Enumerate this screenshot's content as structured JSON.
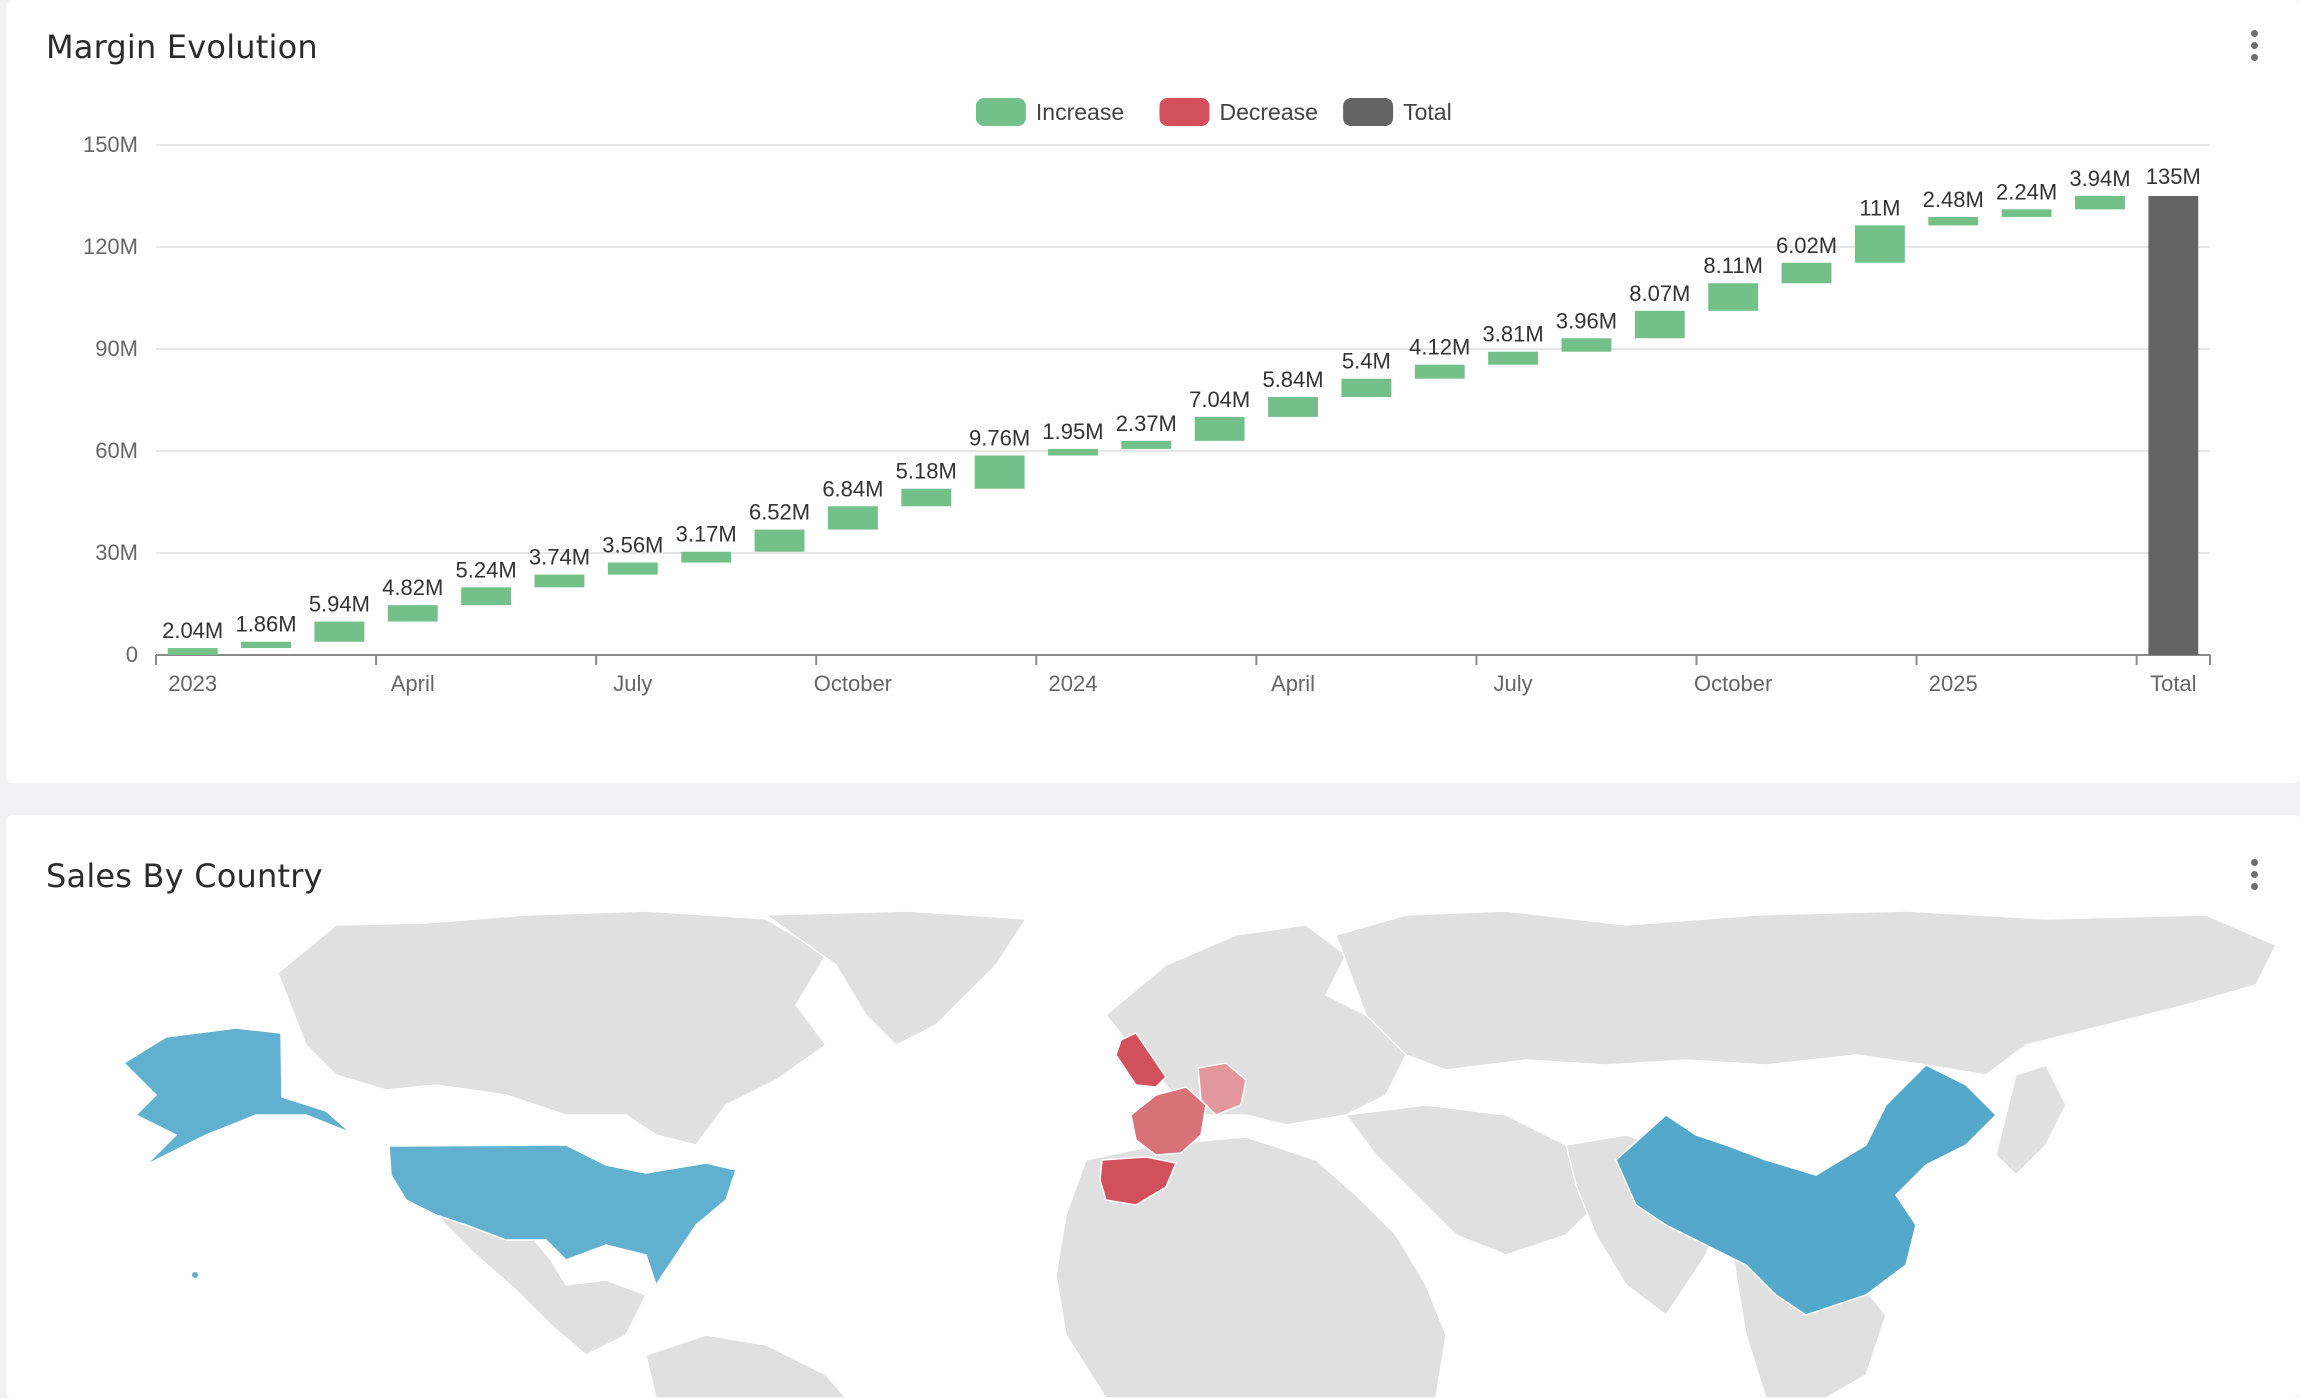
{
  "margin_card": {
    "title": "Margin Evolution",
    "menu_icon": "kebab-menu-icon"
  },
  "sales_card": {
    "title": "Sales By Country",
    "menu_icon": "kebab-menu-icon"
  },
  "colors": {
    "increase": "#74c08a",
    "decrease": "#d1505c",
    "total": "#646464",
    "map_land": "#e0e0e0",
    "map_high": "#62b0cf",
    "map_low_red": "#d1505c",
    "map_mid_red": "#d97278",
    "map_light_red": "#e3969b"
  },
  "chart_data": {
    "type": "waterfall",
    "title": "Margin Evolution",
    "legend": {
      "position": "top-center",
      "items": [
        "Increase",
        "Decrease",
        "Total"
      ]
    },
    "y_ticks": [
      "0",
      "30M",
      "60M",
      "90M",
      "120M",
      "150M"
    ],
    "ylim": [
      0,
      150
    ],
    "y_unit": "M",
    "grid": true,
    "x_tick_labels": [
      "2023",
      "April",
      "July",
      "October",
      "2024",
      "April",
      "July",
      "October",
      "2025",
      "Total"
    ],
    "x_tick_positions": [
      0,
      3,
      6,
      9,
      12,
      15,
      18,
      21,
      24,
      27
    ],
    "steps": [
      {
        "month": "2023-01",
        "value": 2.04,
        "label": "2.04M"
      },
      {
        "month": "2023-02",
        "value": 1.86,
        "label": "1.86M"
      },
      {
        "month": "2023-03",
        "value": 5.94,
        "label": "5.94M"
      },
      {
        "month": "2023-04",
        "value": 4.82,
        "label": "4.82M"
      },
      {
        "month": "2023-05",
        "value": 5.24,
        "label": "5.24M"
      },
      {
        "month": "2023-06",
        "value": 3.74,
        "label": "3.74M"
      },
      {
        "month": "2023-07",
        "value": 3.56,
        "label": "3.56M"
      },
      {
        "month": "2023-08",
        "value": 3.17,
        "label": "3.17M"
      },
      {
        "month": "2023-09",
        "value": 6.52,
        "label": "6.52M"
      },
      {
        "month": "2023-10",
        "value": 6.84,
        "label": "6.84M"
      },
      {
        "month": "2023-11",
        "value": 5.18,
        "label": "5.18M"
      },
      {
        "month": "2023-12",
        "value": 9.76,
        "label": "9.76M"
      },
      {
        "month": "2024-01",
        "value": 1.95,
        "label": "1.95M"
      },
      {
        "month": "2024-02",
        "value": 2.37,
        "label": "2.37M"
      },
      {
        "month": "2024-03",
        "value": 7.04,
        "label": "7.04M"
      },
      {
        "month": "2024-04",
        "value": 5.84,
        "label": "5.84M"
      },
      {
        "month": "2024-05",
        "value": 5.4,
        "label": "5.4M"
      },
      {
        "month": "2024-06",
        "value": 4.12,
        "label": "4.12M"
      },
      {
        "month": "2024-07",
        "value": 3.81,
        "label": "3.81M"
      },
      {
        "month": "2024-08",
        "value": 3.96,
        "label": "3.96M"
      },
      {
        "month": "2024-09",
        "value": 8.07,
        "label": "8.07M"
      },
      {
        "month": "2024-10",
        "value": 8.11,
        "label": "8.11M"
      },
      {
        "month": "2024-11",
        "value": 6.02,
        "label": "6.02M"
      },
      {
        "month": "2024-12",
        "value": 11,
        "label": "11M"
      },
      {
        "month": "2025-01",
        "value": 2.48,
        "label": "2.48M"
      },
      {
        "month": "2025-02",
        "value": 2.24,
        "label": "2.24M"
      },
      {
        "month": "2025-03",
        "value": 3.94,
        "label": "3.94M"
      }
    ],
    "total": {
      "value": 135,
      "label": "135M"
    }
  },
  "map_data": {
    "type": "choropleth",
    "highlighted": [
      {
        "region": "United States",
        "shade": "high"
      },
      {
        "region": "China",
        "shade": "high"
      },
      {
        "region": "United Kingdom",
        "shade": "low_red"
      },
      {
        "region": "France",
        "shade": "mid_red"
      },
      {
        "region": "Spain",
        "shade": "low_red"
      },
      {
        "region": "Germany",
        "shade": "light_red"
      }
    ]
  }
}
